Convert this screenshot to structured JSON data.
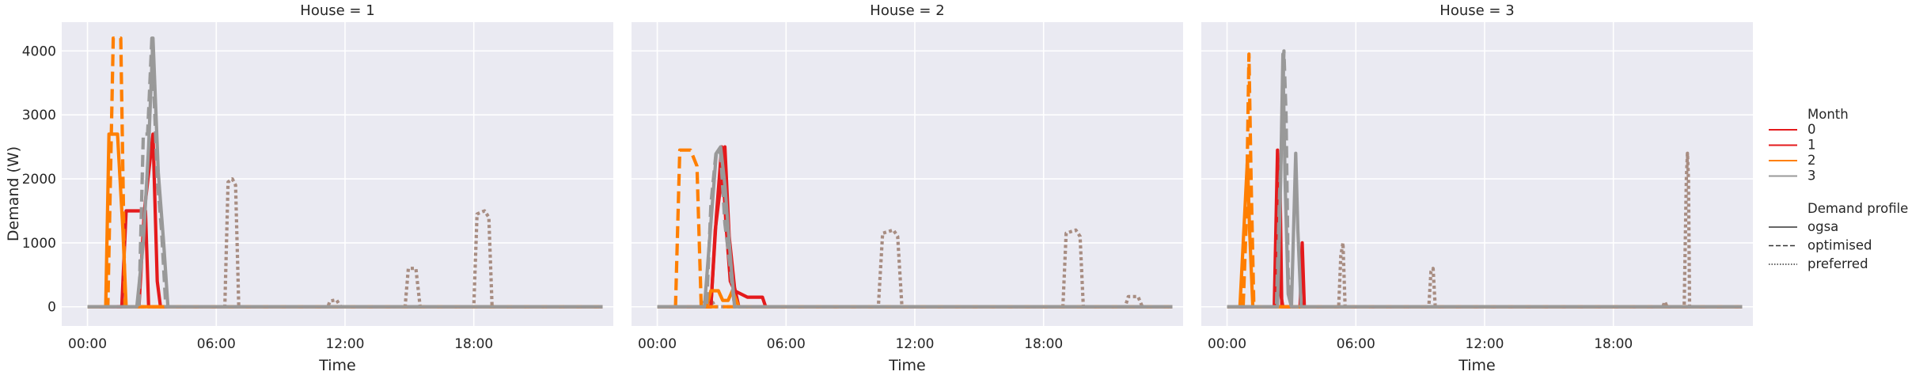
{
  "chart_data": {
    "type": "line",
    "facet_label": "House",
    "xlabel": "Time",
    "ylabel": "Demand (W)",
    "x_ticks": [
      "00:00",
      "06:00",
      "12:00",
      "18:00"
    ],
    "x_tick_hours": [
      0,
      6,
      12,
      18
    ],
    "xlim_hours": [
      -1.2,
      24.5
    ],
    "ylim": [
      -300,
      4450
    ],
    "y_ticks": [
      0,
      1000,
      2000,
      3000,
      4000
    ],
    "grid": true,
    "legend": {
      "placement": "right",
      "hue_title": "Month",
      "hue_entries": [
        "0",
        "1",
        "2",
        "3"
      ],
      "style_title": "Demand profile",
      "style_entries": [
        "ogsa",
        "optimised",
        "preferred"
      ]
    },
    "colors": {
      "0": "#e41a1c",
      "1": "#e41a1c",
      "2": "#ff7f00",
      "3": "#999999",
      "preferred": "#a88d82",
      "neutral": "#333333"
    },
    "panels": [
      {
        "title": "House = 1",
        "series": [
          {
            "month": "3",
            "profile": "preferred",
            "points": [
              [
                0,
                0
              ],
              [
                6.4,
                0
              ],
              [
                6.55,
                1950
              ],
              [
                6.75,
                2000
              ],
              [
                6.9,
                1900
              ],
              [
                7.05,
                0
              ],
              [
                11.2,
                0
              ],
              [
                11.3,
                90
              ],
              [
                11.6,
                110
              ],
              [
                11.8,
                0
              ],
              [
                14.8,
                0
              ],
              [
                14.95,
                600
              ],
              [
                15.3,
                600
              ],
              [
                15.5,
                0
              ],
              [
                18.0,
                0
              ],
              [
                18.15,
                1450
              ],
              [
                18.5,
                1500
              ],
              [
                18.7,
                1400
              ],
              [
                18.85,
                0
              ],
              [
                24,
                0
              ]
            ]
          },
          {
            "month": "0",
            "profile": "ogsa",
            "points": [
              [
                0,
                0
              ],
              [
                1.6,
                0
              ],
              [
                1.8,
                1500
              ],
              [
                2.7,
                1500
              ],
              [
                2.85,
                0
              ],
              [
                24,
                0
              ]
            ]
          },
          {
            "month": "1",
            "profile": "ogsa",
            "points": [
              [
                0,
                0
              ],
              [
                2.4,
                0
              ],
              [
                2.65,
                1500
              ],
              [
                3.05,
                2700
              ],
              [
                3.25,
                400
              ],
              [
                3.4,
                0
              ],
              [
                24,
                0
              ]
            ]
          },
          {
            "month": "2",
            "profile": "ogsa",
            "points": [
              [
                0,
                0
              ],
              [
                0.85,
                0
              ],
              [
                1.0,
                2700
              ],
              [
                1.4,
                2700
              ],
              [
                1.65,
                1200
              ],
              [
                1.8,
                0
              ],
              [
                24,
                0
              ]
            ]
          },
          {
            "month": "2",
            "profile": "optimised",
            "points": [
              [
                0,
                0
              ],
              [
                0.95,
                0
              ],
              [
                1.2,
                4200
              ],
              [
                1.55,
                4200
              ],
              [
                1.75,
                0
              ],
              [
                24,
                0
              ]
            ]
          },
          {
            "month": "3",
            "profile": "optimised",
            "points": [
              [
                0,
                0
              ],
              [
                2.4,
                0
              ],
              [
                2.6,
                2700
              ],
              [
                2.8,
                2700
              ],
              [
                3.0,
                4200
              ],
              [
                3.25,
                2000
              ],
              [
                3.45,
                1200
              ],
              [
                3.65,
                0
              ],
              [
                24,
                0
              ]
            ]
          },
          {
            "month": "3",
            "profile": "ogsa",
            "points": [
              [
                0,
                0
              ],
              [
                2.3,
                0
              ],
              [
                2.6,
                1000
              ],
              [
                2.85,
                2500
              ],
              [
                3.05,
                4200
              ],
              [
                3.3,
                2100
              ],
              [
                3.55,
                1000
              ],
              [
                3.75,
                0
              ],
              [
                24,
                0
              ]
            ]
          }
        ]
      },
      {
        "title": "House = 2",
        "series": [
          {
            "month": "3",
            "profile": "preferred",
            "points": [
              [
                0,
                0
              ],
              [
                2.0,
                0
              ],
              [
                2.2,
                80
              ],
              [
                2.5,
                120
              ],
              [
                2.7,
                0
              ],
              [
                10.3,
                0
              ],
              [
                10.5,
                1150
              ],
              [
                11.0,
                1200
              ],
              [
                11.2,
                1100
              ],
              [
                11.4,
                0
              ],
              [
                18.9,
                0
              ],
              [
                19.05,
                1150
              ],
              [
                19.5,
                1200
              ],
              [
                19.7,
                1100
              ],
              [
                19.85,
                0
              ],
              [
                21.8,
                0
              ],
              [
                21.95,
                160
              ],
              [
                22.4,
                160
              ],
              [
                22.6,
                0
              ],
              [
                24,
                0
              ]
            ]
          },
          {
            "month": "0",
            "profile": "ogsa",
            "points": [
              [
                0,
                0
              ],
              [
                2.5,
                0
              ],
              [
                2.75,
                1400
              ],
              [
                3.0,
                2500
              ],
              [
                3.2,
                1300
              ],
              [
                3.4,
                400
              ],
              [
                3.6,
                250
              ],
              [
                4.2,
                150
              ],
              [
                4.9,
                150
              ],
              [
                5.05,
                0
              ],
              [
                24,
                0
              ]
            ]
          },
          {
            "month": "1",
            "profile": "ogsa",
            "points": [
              [
                0,
                0
              ],
              [
                2.5,
                0
              ],
              [
                2.7,
                1200
              ],
              [
                2.95,
                1900
              ],
              [
                3.15,
                2500
              ],
              [
                3.35,
                1100
              ],
              [
                3.6,
                300
              ],
              [
                3.8,
                0
              ],
              [
                24,
                0
              ]
            ]
          },
          {
            "month": "2",
            "profile": "ogsa",
            "points": [
              [
                0,
                0
              ],
              [
                2.3,
                0
              ],
              [
                2.5,
                250
              ],
              [
                2.85,
                250
              ],
              [
                3.05,
                100
              ],
              [
                3.3,
                100
              ],
              [
                3.5,
                250
              ],
              [
                3.8,
                0
              ],
              [
                24,
                0
              ]
            ]
          },
          {
            "month": "2",
            "profile": "optimised",
            "points": [
              [
                0,
                0
              ],
              [
                0.85,
                0
              ],
              [
                1.05,
                2450
              ],
              [
                1.55,
                2450
              ],
              [
                1.85,
                2200
              ],
              [
                2.05,
                0
              ],
              [
                24,
                0
              ]
            ]
          },
          {
            "month": "3",
            "profile": "optimised",
            "points": [
              [
                0,
                0
              ],
              [
                2.3,
                0
              ],
              [
                2.5,
                1600
              ],
              [
                2.75,
                2450
              ],
              [
                2.95,
                2400
              ],
              [
                3.15,
                1300
              ],
              [
                3.4,
                600
              ],
              [
                3.6,
                0
              ],
              [
                24,
                0
              ]
            ]
          },
          {
            "month": "3",
            "profile": "ogsa",
            "points": [
              [
                0,
                0
              ],
              [
                2.2,
                0
              ],
              [
                2.45,
                1100
              ],
              [
                2.75,
                2400
              ],
              [
                2.95,
                2500
              ],
              [
                3.15,
                1900
              ],
              [
                3.4,
                800
              ],
              [
                3.6,
                0
              ],
              [
                24,
                0
              ]
            ]
          }
        ]
      },
      {
        "title": "House = 3",
        "series": [
          {
            "month": "3",
            "profile": "preferred",
            "points": [
              [
                0,
                0
              ],
              [
                5.2,
                0
              ],
              [
                5.3,
                800
              ],
              [
                5.4,
                1000
              ],
              [
                5.5,
                0
              ],
              [
                9.4,
                0
              ],
              [
                9.5,
                550
              ],
              [
                9.6,
                600
              ],
              [
                9.7,
                0
              ],
              [
                20.3,
                0
              ],
              [
                20.4,
                80
              ],
              [
                20.5,
                0
              ],
              [
                21.3,
                0
              ],
              [
                21.4,
                2000
              ],
              [
                21.45,
                2400
              ],
              [
                21.5,
                2000
              ],
              [
                21.55,
                0
              ],
              [
                24,
                0
              ]
            ]
          },
          {
            "month": "0",
            "profile": "ogsa",
            "points": [
              [
                0,
                0
              ],
              [
                2.2,
                0
              ],
              [
                2.35,
                2450
              ],
              [
                2.5,
                200
              ],
              [
                2.6,
                0
              ],
              [
                3.4,
                0
              ],
              [
                3.5,
                1000
              ],
              [
                3.6,
                0
              ],
              [
                24,
                0
              ]
            ]
          },
          {
            "month": "1",
            "profile": "ogsa",
            "points": [
              [
                0,
                0
              ],
              [
                2.3,
                0
              ],
              [
                2.45,
                2300
              ],
              [
                2.55,
                0
              ],
              [
                24,
                0
              ]
            ]
          },
          {
            "month": "2",
            "profile": "ogsa",
            "points": [
              [
                0,
                0
              ],
              [
                0.6,
                0
              ],
              [
                0.8,
                1300
              ],
              [
                0.95,
                2300
              ],
              [
                1.05,
                1200
              ],
              [
                1.2,
                0
              ],
              [
                24,
                0
              ]
            ]
          },
          {
            "month": "2",
            "profile": "optimised",
            "points": [
              [
                0,
                0
              ],
              [
                0.75,
                0
              ],
              [
                0.9,
                1400
              ],
              [
                1.02,
                3950
              ],
              [
                1.12,
                2000
              ],
              [
                1.25,
                0
              ],
              [
                24,
                0
              ]
            ]
          },
          {
            "month": "3",
            "profile": "optimised",
            "points": [
              [
                0,
                0
              ],
              [
                2.3,
                0
              ],
              [
                2.45,
                1800
              ],
              [
                2.55,
                2600
              ],
              [
                2.65,
                4000
              ],
              [
                2.75,
                3000
              ],
              [
                2.85,
                500
              ],
              [
                3.0,
                0
              ],
              [
                24,
                0
              ]
            ]
          },
          {
            "month": "3",
            "profile": "ogsa",
            "points": [
              [
                0,
                0
              ],
              [
                2.35,
                0
              ],
              [
                2.5,
                2000
              ],
              [
                2.6,
                3950
              ],
              [
                2.7,
                2000
              ],
              [
                2.85,
                200
              ],
              [
                3.0,
                0
              ],
              [
                3.1,
                1200
              ],
              [
                3.2,
                2400
              ],
              [
                3.3,
                1200
              ],
              [
                3.45,
                0
              ],
              [
                24,
                0
              ]
            ]
          }
        ]
      }
    ]
  }
}
